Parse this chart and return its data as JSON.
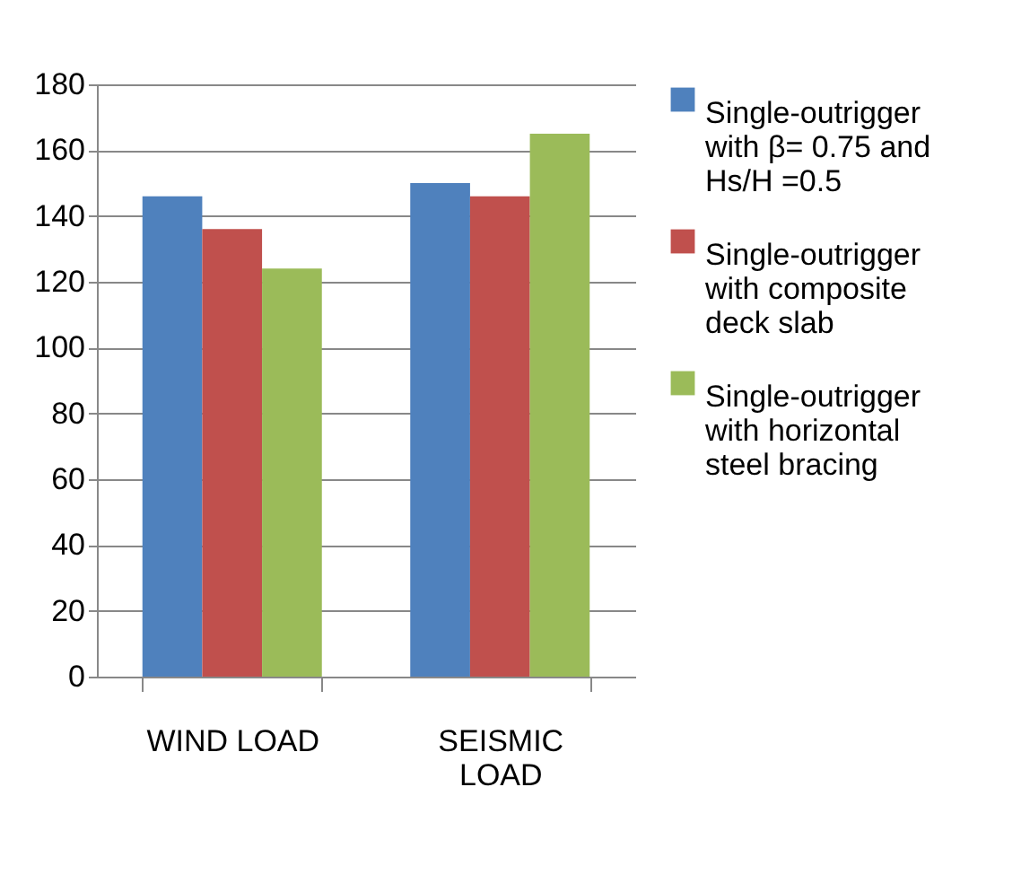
{
  "chart_data": {
    "type": "bar",
    "categories": [
      "WIND LOAD",
      "SEISMIC LOAD"
    ],
    "series": [
      {
        "name": "Single-outrigger with β= 0.75 and Hs/H =0.5",
        "color": "#4f81bd",
        "values": [
          146,
          150
        ]
      },
      {
        "name": "Single-outrigger with composite deck slab",
        "color": "#c0504d",
        "values": [
          136,
          146
        ]
      },
      {
        "name": "Single-outrigger with horizontal steel bracing",
        "color": "#9bbb59",
        "values": [
          124,
          165
        ]
      }
    ],
    "ylim": [
      0,
      180
    ],
    "yticks": [
      0,
      20,
      40,
      60,
      80,
      100,
      120,
      140,
      160,
      180
    ],
    "grid": "y",
    "legend": "right"
  }
}
